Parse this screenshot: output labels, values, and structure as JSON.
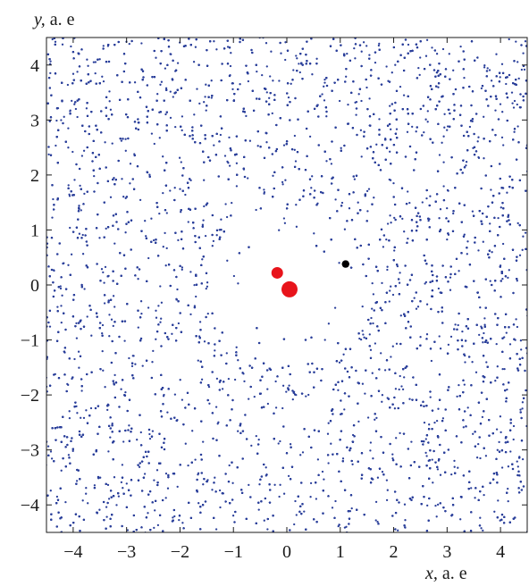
{
  "chart_data": {
    "type": "scatter",
    "title": "",
    "xlabel": {
      "var": "x,",
      "unit": " a. e"
    },
    "ylabel": {
      "var": "y,",
      "unit": " a. e"
    },
    "xlim": [
      -4.5,
      4.5
    ],
    "ylim": [
      -4.5,
      4.5
    ],
    "xticks": [
      -4,
      -3,
      -2,
      -1,
      0,
      1,
      2,
      3,
      4
    ],
    "yticks": [
      -4,
      -3,
      -2,
      -1,
      0,
      1,
      2,
      3,
      4
    ],
    "xtick_labels": [
      "−4",
      "−3",
      "−2",
      "−1",
      "0",
      "1",
      "2",
      "3",
      "4"
    ],
    "ytick_labels": [
      "−4",
      "−3",
      "−2",
      "−1",
      "0",
      "1",
      "2",
      "3",
      "4"
    ],
    "grid": false,
    "colors": {
      "particles": "#2a3f9a",
      "stars": "#e8141b",
      "planet": "#000000",
      "axes": "#1a1a1a"
    },
    "series": [
      {
        "kind": "particle-disk",
        "approx_count": 9000,
        "inner_cavity_radius": 0.75,
        "ring_radius": 1.0,
        "gap": [
          1.25,
          1.45
        ],
        "outer_radius": 6.4
      },
      {
        "kind": "stars",
        "points": [
          {
            "x": 0.05,
            "y": -0.08,
            "size": "large"
          },
          {
            "x": -0.18,
            "y": 0.22,
            "size": "small"
          }
        ]
      },
      {
        "kind": "planet",
        "points": [
          {
            "x": 1.1,
            "y": 0.38
          }
        ]
      }
    ]
  }
}
